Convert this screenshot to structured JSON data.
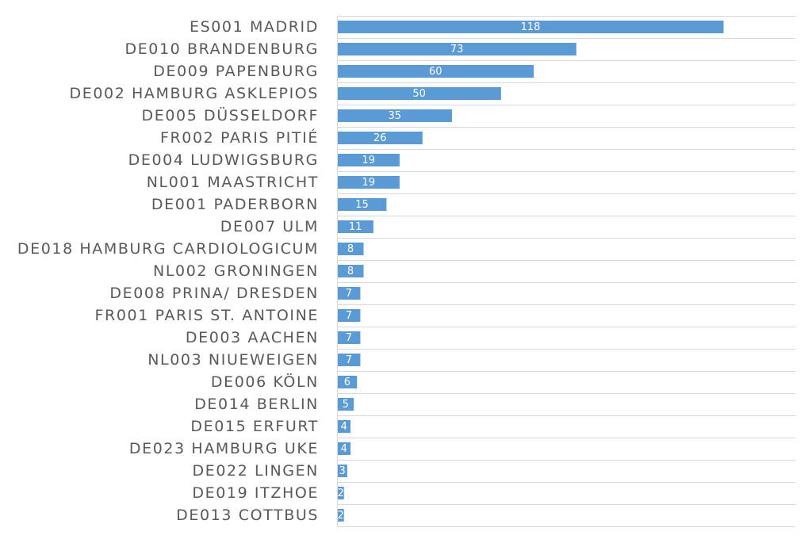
{
  "chart_data": {
    "type": "bar",
    "orientation": "horizontal",
    "title": "",
    "xlabel": "",
    "ylabel": "",
    "grid": true,
    "legend": "none",
    "bar_color": "#5b9bd5",
    "xlim": [
      0,
      140
    ],
    "categories": [
      "ES001 MADRID",
      "DE010 BRANDENBURG",
      "DE009 PAPENBURG",
      "DE002 HAMBURG ASKLEPIOS",
      "DE005 DÜSSELDORF",
      "FR002 PARIS PITIÉ",
      "DE004 LUDWIGSBURG",
      "NL001 MAASTRICHT",
      "DE001 PADERBORN",
      "DE007 ULM",
      "DE018 HAMBURG CARDIOLOGICUM",
      "NL002 GRONINGEN",
      "DE008 PRINA/ DRESDEN",
      "FR001 PARIS ST. ANTOINE",
      "DE003 AACHEN",
      "NL003 NIUEWEIGEN",
      "DE006 KÖLN",
      "DE014 BERLIN",
      "DE015 ERFURT",
      "DE023 HAMBURG UKE",
      "DE022 LINGEN",
      "DE019 ITZHOE",
      "DE013 COTTBUS"
    ],
    "values": [
      118,
      73,
      60,
      50,
      35,
      26,
      19,
      19,
      15,
      11,
      8,
      8,
      7,
      7,
      7,
      7,
      6,
      5,
      4,
      4,
      3,
      2,
      2
    ]
  }
}
